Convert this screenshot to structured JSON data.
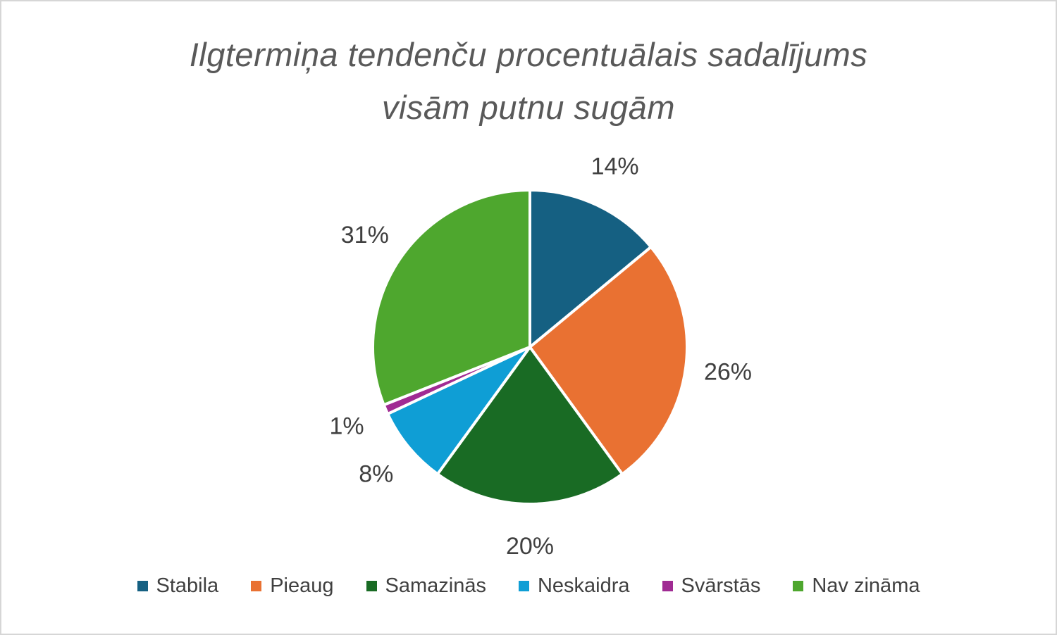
{
  "title": {
    "lines": [
      "Ilgtermiņa tendenču procentuālais sadalījums",
      "visām putnu sugām"
    ]
  },
  "chart_data": {
    "type": "pie",
    "title": "Ilgtermiņa tendenču procentuālais sadalījums visām putnu sugām",
    "categories": [
      "Stabila",
      "Pieaug",
      "Samazinās",
      "Neskaidra",
      "Svārstās",
      "Nav zināma"
    ],
    "values": [
      14,
      26,
      20,
      8,
      1,
      31
    ],
    "unit": "%",
    "labels": [
      "14%",
      "26%",
      "20%",
      "8%",
      "1%",
      "31%"
    ],
    "colors": [
      "#156082",
      "#E97132",
      "#196B24",
      "#0F9ED5",
      "#A02B93",
      "#4EA72E"
    ],
    "start_angle_deg": 0,
    "direction": "clockwise",
    "legend_position": "bottom",
    "label_color": "#404040",
    "title_color": "#595959",
    "slice_border_color": "#FFFFFF"
  }
}
